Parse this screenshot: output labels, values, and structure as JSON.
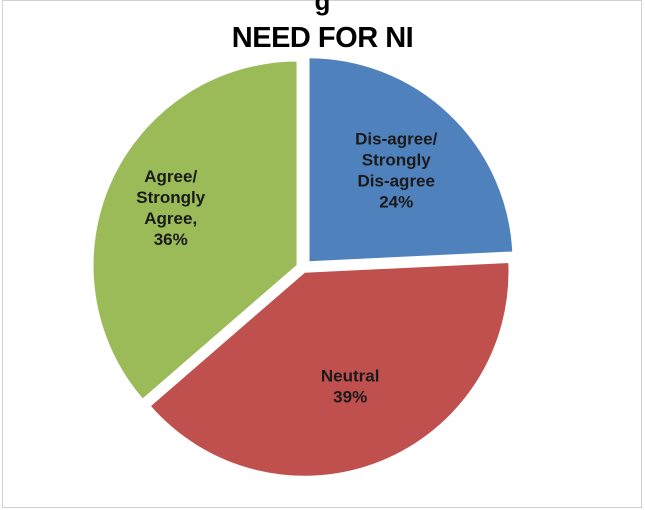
{
  "chart_data": {
    "type": "pie",
    "title": "NEED FOR NI",
    "clipped_caption": "g",
    "slices": [
      {
        "label_lines": [
          "Dis-agree/",
          "Strongly",
          "Dis-agree",
          "24%"
        ],
        "value": 24,
        "color": "#4f81bd"
      },
      {
        "label_lines": [
          "Neutral",
          "39%"
        ],
        "value": 39,
        "color": "#c0504d"
      },
      {
        "label_lines": [
          "Agree/",
          "Strongly",
          "Agree,",
          "36%"
        ],
        "value": 36,
        "color": "#9bbb59"
      }
    ],
    "legend": "none",
    "grid": false
  }
}
